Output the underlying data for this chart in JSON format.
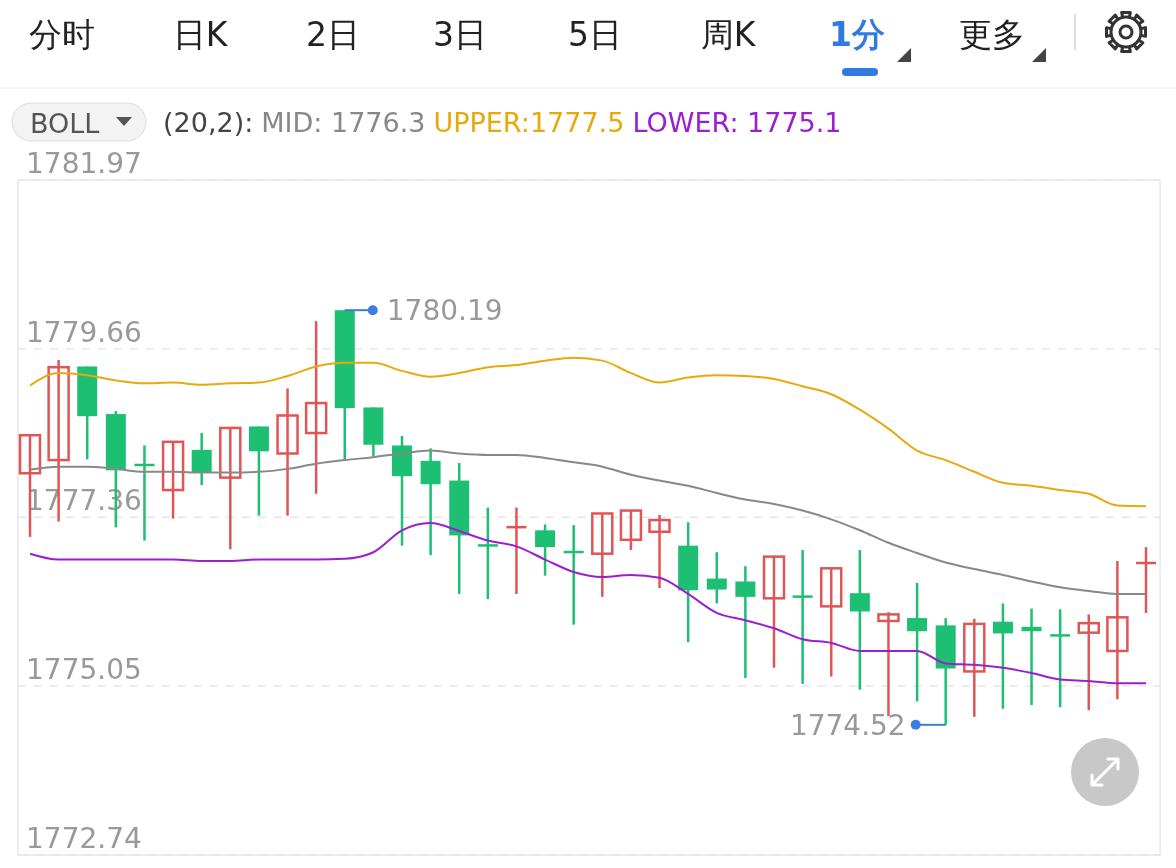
{
  "chart_data": {
    "type": "candlestick",
    "categories": [
      null,
      null,
      null,
      null,
      null,
      null,
      null,
      null,
      null,
      null,
      null,
      null,
      null,
      null,
      null,
      null,
      null,
      null,
      null,
      null,
      null,
      null,
      null,
      null,
      null,
      null,
      null,
      null,
      null,
      null,
      null,
      null,
      null,
      null,
      null,
      null,
      null,
      null,
      null,
      null
    ],
    "ohlc": [
      [
        1777.96,
        1778.49,
        1777.09,
        1778.48
      ],
      [
        1778.14,
        1779.51,
        1777.3,
        1779.41
      ],
      [
        1779.42,
        1779.42,
        1778.15,
        1778.74
      ],
      [
        1778.77,
        1778.81,
        1777.22,
        1778.0
      ],
      [
        1778.09,
        1778.34,
        1777.04,
        1778.09
      ],
      [
        1777.73,
        1778.39,
        1777.34,
        1778.39
      ],
      [
        1778.28,
        1778.51,
        1777.8,
        1777.97
      ],
      [
        1777.9,
        1778.58,
        1776.92,
        1778.58
      ],
      [
        1778.6,
        1778.6,
        1777.38,
        1778.26
      ],
      [
        1778.23,
        1779.12,
        1777.38,
        1778.75
      ],
      [
        1778.51,
        1780.04,
        1777.68,
        1778.92
      ],
      [
        1780.19,
        1780.19,
        1778.14,
        1778.85
      ],
      [
        1778.86,
        1778.86,
        1778.19,
        1778.35
      ],
      [
        1778.34,
        1778.47,
        1776.97,
        1777.92
      ],
      [
        1778.13,
        1778.3,
        1776.84,
        1777.81
      ],
      [
        1777.86,
        1778.1,
        1776.31,
        1777.11
      ],
      [
        1776.99,
        1777.49,
        1776.24,
        1776.99
      ],
      [
        1777.24,
        1777.49,
        1776.31,
        1777.24
      ],
      [
        1777.18,
        1777.26,
        1776.56,
        1776.95
      ],
      [
        1776.9,
        1777.25,
        1775.89,
        1776.9
      ],
      [
        1776.86,
        1777.41,
        1776.27,
        1777.41
      ],
      [
        1777.05,
        1777.45,
        1776.91,
        1777.45
      ],
      [
        1777.16,
        1777.39,
        1776.39,
        1777.32
      ],
      [
        1776.97,
        1777.29,
        1775.65,
        1776.36
      ],
      [
        1776.52,
        1776.88,
        1776.18,
        1776.37
      ],
      [
        1776.48,
        1776.69,
        1775.16,
        1776.27
      ],
      [
        1776.25,
        1776.82,
        1775.3,
        1776.82
      ],
      [
        1776.29,
        1776.91,
        1775.08,
        1776.29
      ],
      [
        1776.14,
        1776.66,
        1775.18,
        1776.66
      ],
      [
        1776.32,
        1776.91,
        1775.0,
        1776.07
      ],
      [
        1775.94,
        1776.06,
        1774.64,
        1776.03
      ],
      [
        1775.98,
        1776.46,
        1774.84,
        1775.8
      ],
      [
        1775.88,
        1775.98,
        1774.52,
        1775.29
      ],
      [
        1775.25,
        1775.97,
        1774.63,
        1775.9
      ],
      [
        1775.93,
        1776.18,
        1774.74,
        1775.77
      ],
      [
        1775.86,
        1776.11,
        1774.79,
        1775.8
      ],
      [
        1775.76,
        1776.1,
        1774.76,
        1775.76
      ],
      [
        1775.78,
        1776.03,
        1774.72,
        1775.91
      ],
      [
        1775.53,
        1776.76,
        1774.87,
        1775.99
      ],
      [
        1776.75,
        1776.95,
        1776.05,
        1776.75
      ]
    ],
    "colors": [
      "#e05555",
      "#e05555",
      "#1dbf73",
      "#1dbf73",
      "#1dbf73",
      "#e05555",
      "#1dbf73",
      "#e05555",
      "#1dbf73",
      "#e05555",
      "#e05555",
      "#1dbf73",
      "#1dbf73",
      "#1dbf73",
      "#1dbf73",
      "#1dbf73",
      "#1dbf73",
      "#e05555",
      "#1dbf73",
      "#1dbf73",
      "#e05555",
      "#e05555",
      "#e05555",
      "#1dbf73",
      "#1dbf73",
      "#1dbf73",
      "#e05555",
      "#1dbf73",
      "#e05555",
      "#1dbf73",
      "#e05555",
      "#1dbf73",
      "#1dbf73",
      "#e05555",
      "#1dbf73",
      "#1dbf73",
      "#1dbf73",
      "#e05555",
      "#e05555",
      "#e05555"
    ],
    "legend_title": "(20,2):",
    "legend": "top left",
    "series": [
      {
        "name": "MID: 1776.3",
        "color": "#888888",
        "type": "line",
        "values": [
          1778.01,
          1778.05,
          1778.05,
          1778.02,
          1777.98,
          1777.98,
          1777.97,
          1777.97,
          1777.98,
          1778.02,
          1778.09,
          1778.14,
          1778.18,
          1778.23,
          1778.27,
          1778.23,
          1778.21,
          1778.21,
          1778.17,
          1778.11,
          1778.05,
          1777.94,
          1777.86,
          1777.79,
          1777.69,
          1777.6,
          1777.54,
          1777.45,
          1777.33,
          1777.18,
          1777.01,
          1776.87,
          1776.74,
          1776.65,
          1776.57,
          1776.48,
          1776.4,
          1776.35,
          1776.31,
          1776.31
        ]
      },
      {
        "name": "UPPER:1777.5",
        "color": "#e8a90c",
        "type": "line",
        "values": [
          1779.16,
          1779.33,
          1779.3,
          1779.23,
          1779.19,
          1779.2,
          1779.17,
          1779.19,
          1779.2,
          1779.29,
          1779.42,
          1779.47,
          1779.47,
          1779.36,
          1779.28,
          1779.33,
          1779.41,
          1779.44,
          1779.5,
          1779.54,
          1779.5,
          1779.33,
          1779.2,
          1779.27,
          1779.3,
          1779.29,
          1779.25,
          1779.15,
          1779.04,
          1778.83,
          1778.57,
          1778.27,
          1778.14,
          1777.98,
          1777.83,
          1777.79,
          1777.73,
          1777.68,
          1777.52,
          1777.51
        ]
      },
      {
        "name": "LOWER: 1775.1",
        "color": "#9b1fd1",
        "type": "line",
        "values": [
          1776.86,
          1776.78,
          1776.78,
          1776.78,
          1776.78,
          1776.78,
          1776.76,
          1776.76,
          1776.78,
          1776.78,
          1776.78,
          1776.79,
          1776.88,
          1777.18,
          1777.28,
          1777.17,
          1777.04,
          1776.96,
          1776.78,
          1776.61,
          1776.54,
          1776.57,
          1776.53,
          1776.31,
          1776.05,
          1775.95,
          1775.84,
          1775.69,
          1775.64,
          1775.53,
          1775.53,
          1775.53,
          1775.36,
          1775.34,
          1775.3,
          1775.23,
          1775.14,
          1775.12,
          1775.09,
          1775.09
        ]
      }
    ],
    "ylim": [
      1772.74,
      1781.97
    ],
    "yticks": [
      1781.97,
      1779.66,
      1777.36,
      1775.05,
      1772.74
    ],
    "grid": "y",
    "annotations": [
      "1780.19",
      "1774.52",
      "分时",
      "日K",
      "2日",
      "3日",
      "5日",
      "周K",
      "1分",
      "更多",
      "BOLL"
    ]
  }
}
